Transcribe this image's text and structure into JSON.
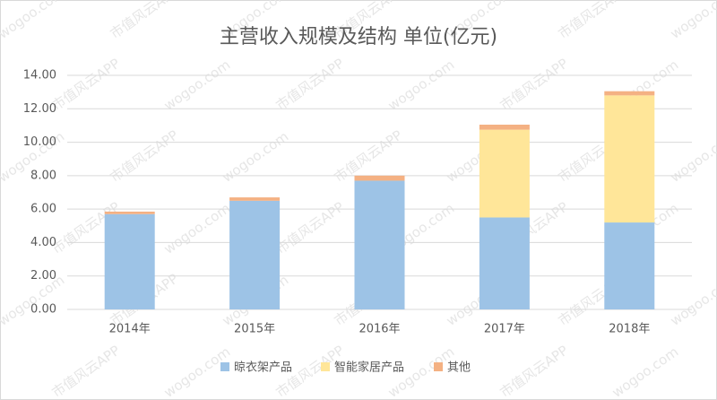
{
  "chart_data": {
    "type": "stacked_bar",
    "title": "主营收入规模及结构  单位(亿元)",
    "categories": [
      "2014年",
      "2015年",
      "2016年",
      "2017年",
      "2018年"
    ],
    "series": [
      {
        "name": "晾衣架产品",
        "color": "#9dc3e6",
        "values": [
          5.7,
          6.5,
          7.7,
          5.5,
          5.2
        ]
      },
      {
        "name": "智能家居产品",
        "color": "#ffe699",
        "values": [
          0,
          0,
          0,
          5.25,
          7.6
        ]
      },
      {
        "name": "其他",
        "color": "#f4b183",
        "values": [
          0.15,
          0.2,
          0.3,
          0.3,
          0.25
        ]
      }
    ],
    "ylim": [
      0,
      14
    ],
    "yticks": [
      {
        "value": 0,
        "label": "0.00"
      },
      {
        "value": 2,
        "label": "2.00"
      },
      {
        "value": 4,
        "label": "4.00"
      },
      {
        "value": 6,
        "label": "6.00"
      },
      {
        "value": 8,
        "label": "8.00"
      },
      {
        "value": 10,
        "label": "10.00"
      },
      {
        "value": 12,
        "label": "12.00"
      },
      {
        "value": 14,
        "label": "14.00"
      }
    ],
    "grid": true,
    "legend": "bottom",
    "watermark": [
      "wogoo.com",
      "市值风云APP"
    ]
  }
}
